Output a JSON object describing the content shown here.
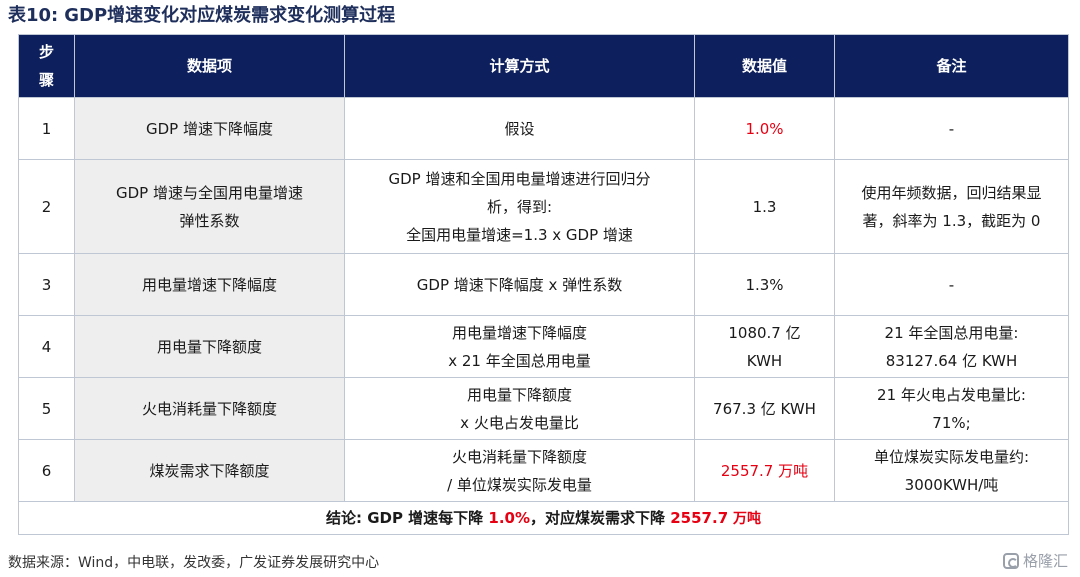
{
  "title": {
    "label": "表10:",
    "text": "GDP增速变化对应煤炭需求变化测算过程"
  },
  "table": {
    "headers": {
      "step": "步骤",
      "item": "数据项",
      "method": "计算方式",
      "value": "数据值",
      "note": "备注"
    },
    "rows": [
      {
        "step": "1",
        "item": [
          "GDP 增速下降幅度"
        ],
        "method": [
          "假设"
        ],
        "value": [
          "1.0%"
        ],
        "note": [
          "-"
        ]
      },
      {
        "step": "2",
        "item": [
          "GDP 增速与全国用电量增速",
          "弹性系数"
        ],
        "method": [
          "GDP 增速和全国用电量增速进行回归分",
          "析，得到:",
          "全国用电量增速=1.3 x GDP 增速"
        ],
        "value": [
          "1.3"
        ],
        "note": [
          "使用年频数据，回归结果显",
          "著，斜率为 1.3，截距为 0"
        ]
      },
      {
        "step": "3",
        "item": [
          "用电量增速下降幅度"
        ],
        "method": [
          "GDP 增速下降幅度  x  弹性系数"
        ],
        "value": [
          "1.3%"
        ],
        "note": [
          "-"
        ]
      },
      {
        "step": "4",
        "item": [
          "用电量下降额度"
        ],
        "method": [
          "用电量增速下降幅度",
          "x 21 年全国总用电量"
        ],
        "value": [
          "1080.7 亿",
          "KWH"
        ],
        "note": [
          "21 年全国总用电量:",
          "83127.64 亿 KWH"
        ]
      },
      {
        "step": "5",
        "item": [
          "火电消耗量下降额度"
        ],
        "method": [
          "用电量下降额度",
          "x  火电占发电量比"
        ],
        "value": [
          "767.3 亿 KWH"
        ],
        "note": [
          "21 年火电占发电量比:",
          "71%;"
        ]
      },
      {
        "step": "6",
        "item": [
          "煤炭需求下降额度"
        ],
        "method": [
          "火电消耗量下降额度",
          "/  单位煤炭实际发电量"
        ],
        "value": [
          "2557.7 万吨"
        ],
        "note": [
          "单位煤炭实际发电量约:",
          "3000KWH/吨"
        ]
      }
    ],
    "conclusion": {
      "prefix": "结论:  GDP 增速每下降 ",
      "value1": "1.0%",
      "middle": "，对应煤炭需求下降 ",
      "value2": "2557.7",
      "unit": " 万吨"
    }
  },
  "source": "数据来源：Wind，中电联，发改委，广发证券发展研究中心",
  "watermark": "格隆汇",
  "colors": {
    "header_bg": "#0d1f5c",
    "item_bg": "#eeeeee",
    "highlight": "#e60012",
    "title": "#1f2f5c"
  }
}
